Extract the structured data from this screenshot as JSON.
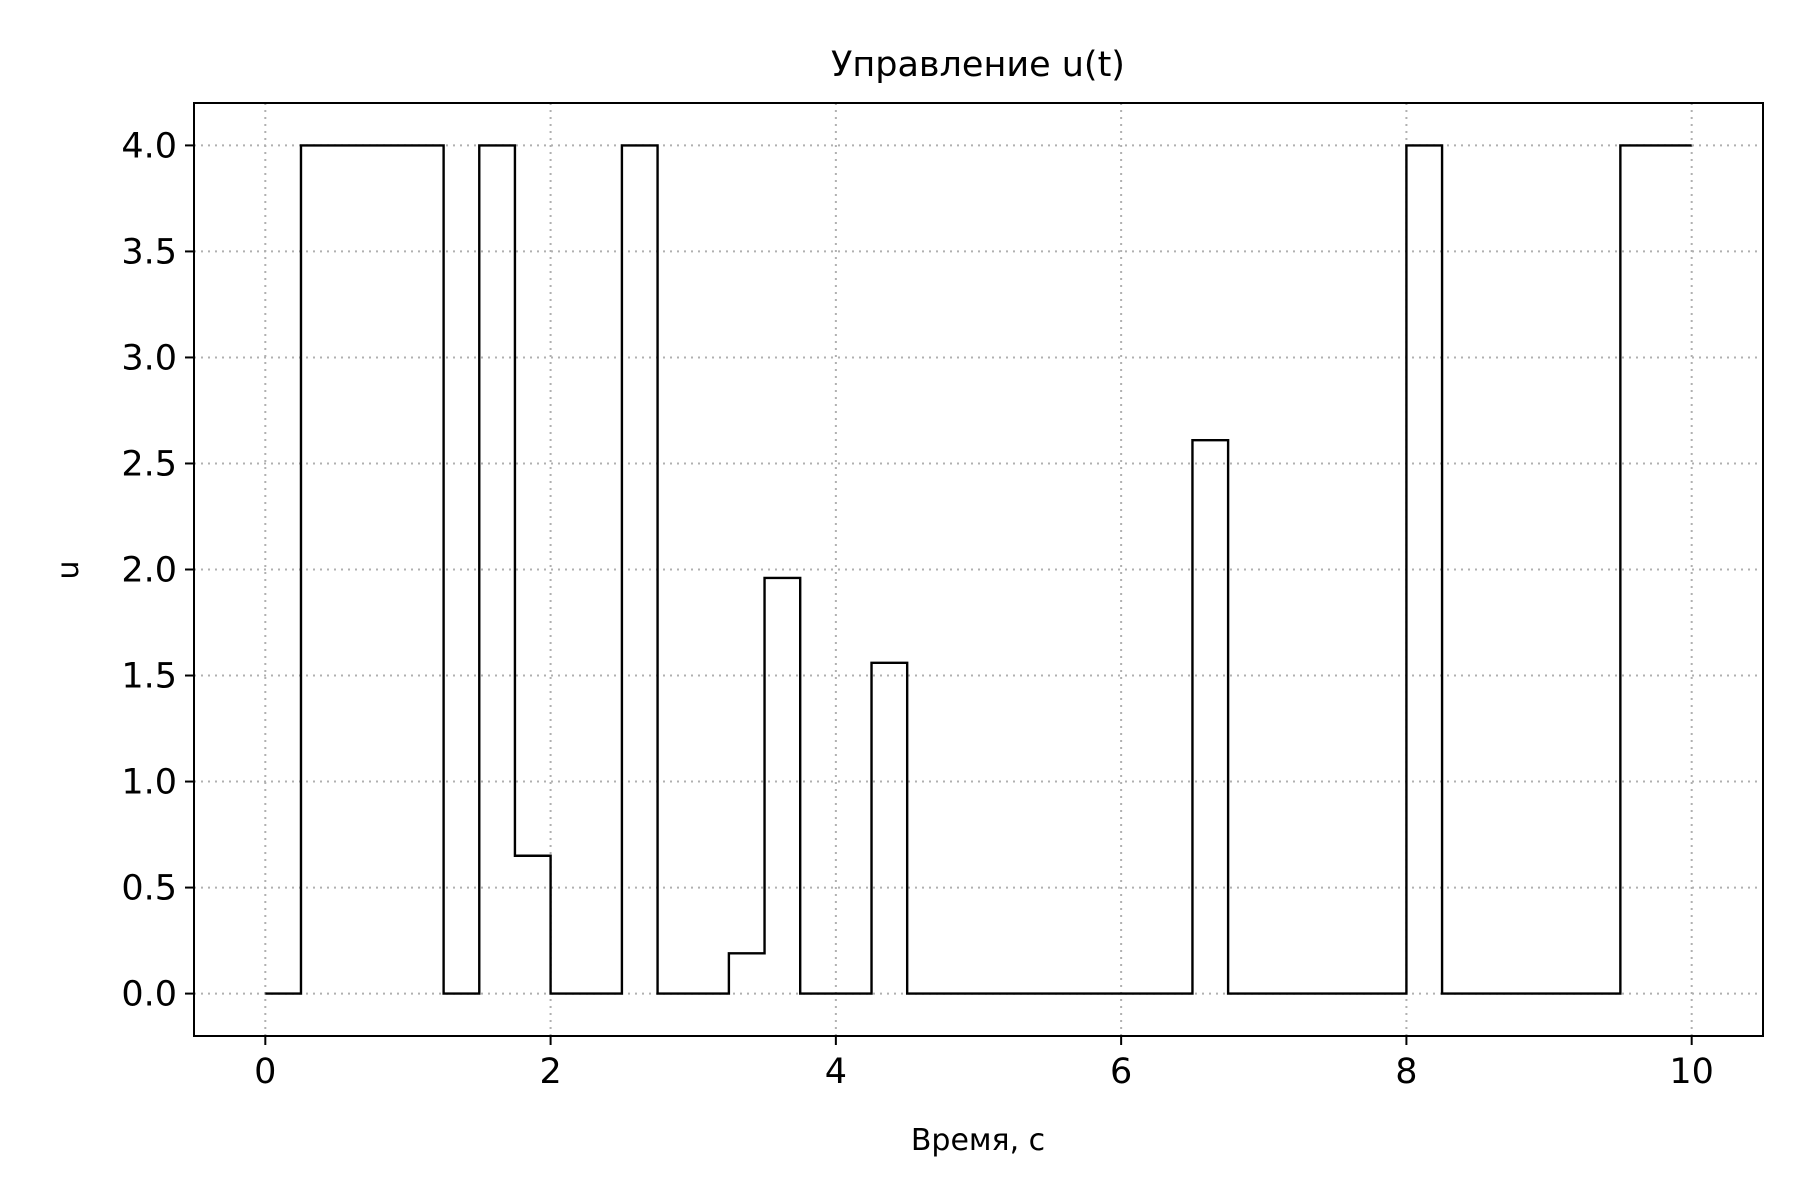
{
  "chart_data": {
    "type": "line",
    "title": "Управление u(t)",
    "xlabel": "Время, с",
    "ylabel": "u",
    "xlim": [
      -0.5,
      10.5
    ],
    "ylim": [
      -0.2,
      4.2
    ],
    "xticks": [
      0,
      2,
      4,
      6,
      8,
      10
    ],
    "xtick_labels": [
      "0",
      "2",
      "4",
      "6",
      "8",
      "10"
    ],
    "yticks": [
      0.0,
      0.5,
      1.0,
      1.5,
      2.0,
      2.5,
      3.0,
      3.5,
      4.0
    ],
    "ytick_labels": [
      "0.0",
      "0.5",
      "1.0",
      "1.5",
      "2.0",
      "2.5",
      "3.0",
      "3.5",
      "4.0"
    ],
    "grid": true,
    "step": "post",
    "line_color": "#000000",
    "series": [
      {
        "x": [
          0,
          0.25,
          0.5,
          0.75,
          1.0,
          1.25,
          1.5,
          1.75,
          2.0,
          2.25,
          2.5,
          2.75,
          3.0,
          3.25,
          3.5,
          3.75,
          4.0,
          4.25,
          4.5,
          4.75,
          5.0,
          5.25,
          5.5,
          5.75,
          6.0,
          6.25,
          6.5,
          6.75,
          7.0,
          7.25,
          7.5,
          7.75,
          8.0,
          8.25,
          8.5,
          8.75,
          9.0,
          9.25,
          9.5,
          9.75,
          10.0
        ],
        "y": [
          0,
          4,
          4,
          4,
          4,
          0,
          4,
          0.65,
          0,
          0,
          4,
          0,
          0,
          0.19,
          1.96,
          0,
          0,
          1.56,
          0,
          0,
          0,
          0,
          0,
          0,
          0,
          0,
          2.61,
          0,
          0,
          0,
          0,
          0,
          4,
          0,
          0,
          0,
          0,
          0,
          4,
          4,
          4
        ]
      }
    ]
  }
}
